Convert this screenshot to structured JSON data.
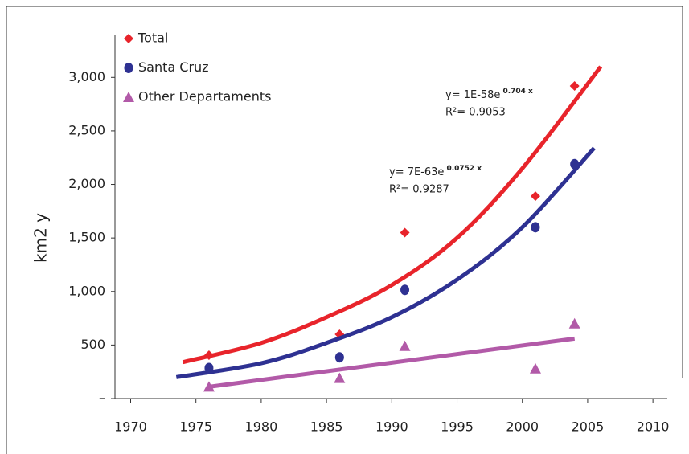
{
  "chart_data": {
    "type": "scatter",
    "y_label": "km2 y",
    "xlim": [
      1968.8,
      2011.1
    ],
    "xticks": [
      1970,
      1975,
      1980,
      1985,
      1990,
      1995,
      2000,
      2005,
      2010
    ],
    "ylim": [
      0,
      3400
    ],
    "yticks": [
      {
        "value": 0,
        "label": "–"
      },
      500,
      {
        "value": 1000,
        "label": "1,000"
      },
      {
        "value": 1500,
        "label": "1,500"
      },
      {
        "value": 2000,
        "label": "2,000"
      },
      {
        "value": 2500,
        "label": "2,500"
      },
      {
        "value": 3000,
        "label": "3,000"
      }
    ],
    "legend": "top-left",
    "series": [
      {
        "name": "Total",
        "color": "#e8242b",
        "marker": "diamond",
        "x": [
          1976,
          1986,
          1991,
          2001,
          2004
        ],
        "values": [
          405,
          600,
          1550,
          1890,
          2920
        ],
        "trend": {
          "x": [
            1974,
            1980,
            1985,
            1990,
            1995,
            2000,
            2006
          ],
          "values": [
            340,
            520,
            760,
            1060,
            1500,
            2150,
            3100
          ]
        }
      },
      {
        "name": "Santa Cruz",
        "color": "#2e3192",
        "marker": "circle",
        "x": [
          1976,
          1986,
          1991,
          2001,
          2004
        ],
        "values": [
          285,
          385,
          1015,
          1600,
          2190
        ],
        "trend": {
          "x": [
            1973.5,
            1980,
            1985,
            1990,
            1995,
            2000,
            2005.5
          ],
          "values": [
            200,
            330,
            520,
            760,
            1110,
            1600,
            2340
          ]
        }
      },
      {
        "name": "Other Departaments",
        "color": "#b25aa8",
        "marker": "triangle",
        "x": [
          1976,
          1986,
          1991,
          2001,
          2004
        ],
        "values": [
          110,
          190,
          490,
          280,
          700
        ],
        "trend": {
          "x": [
            1976,
            2004
          ],
          "values": [
            110,
            560
          ]
        }
      }
    ],
    "annotations": [
      {
        "text": "y= 1E-58e",
        "exponent": "0.704 x",
        "r2": "R²= 0.9053"
      },
      {
        "text": "y= 7E-63e",
        "exponent": "0.0752 x",
        "r2": "R²= 0.9287"
      }
    ]
  }
}
